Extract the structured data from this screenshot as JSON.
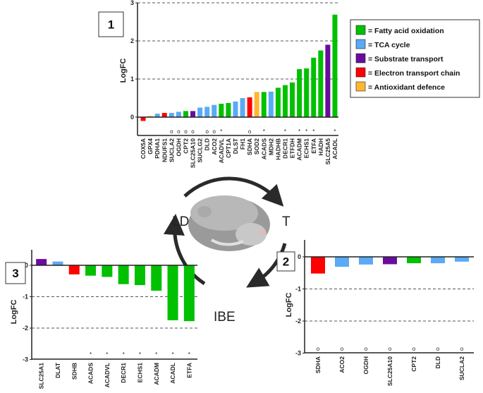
{
  "colors": {
    "fao": "#00c000",
    "tca": "#5aaaf5",
    "transport": "#6a0d9e",
    "etc": "#ff0000",
    "antiox": "#ffb732"
  },
  "legend": [
    {
      "key": "fao",
      "label": "= Fatty acid oxidation"
    },
    {
      "key": "tca",
      "label": "= TCA cycle"
    },
    {
      "key": "transport",
      "label": "= Substrate transport"
    },
    {
      "key": "etc",
      "label": "= Electron transport chain"
    },
    {
      "key": "antiox",
      "label": "= Antioxidant defence"
    }
  ],
  "cycle": {
    "ld": "LD",
    "t": "T",
    "ibe": "IBE"
  },
  "chart_data": [
    {
      "panel": "1",
      "type": "bar",
      "ylabel": "LogFC",
      "ylim": [
        -0.3,
        3
      ],
      "yticks": [
        "0",
        "1",
        "2",
        "3"
      ],
      "ytick_values": [
        0,
        1,
        2,
        3
      ],
      "grid": "dashed at 1,2,3",
      "categories": [
        "COX5A",
        "GPX4",
        "PDHA1",
        "NDUFS1",
        "SUCLA2",
        "OGDH",
        "CPT2",
        "SLC25A10",
        "SUCLG2",
        "DLD",
        "ACO2",
        "ACADVL",
        "CPT1A",
        "DLST",
        "FH1",
        "SDHA",
        "SOD2",
        "ACADS",
        "MDH2",
        "HADHB",
        "DECR1",
        "ETFDH",
        "ACADM",
        "ECHS1",
        "ETFA",
        "HADH",
        "SLC25A5",
        "ACADL"
      ],
      "values": [
        -0.1,
        0.03,
        0.09,
        0.11,
        0.11,
        0.14,
        0.16,
        0.16,
        0.25,
        0.27,
        0.32,
        0.35,
        0.37,
        0.41,
        0.5,
        0.52,
        0.66,
        0.66,
        0.67,
        0.77,
        0.84,
        0.91,
        1.26,
        1.28,
        1.56,
        1.75,
        1.9,
        2.69
      ],
      "groups": [
        "etc",
        "antiox",
        "tca",
        "etc",
        "tca",
        "tca",
        "fao",
        "transport",
        "tca",
        "tca",
        "tca",
        "fao",
        "fao",
        "tca",
        "tca",
        "etc",
        "antiox",
        "fao",
        "tca",
        "fao",
        "fao",
        "fao",
        "fao",
        "fao",
        "fao",
        "fao",
        "transport",
        "fao"
      ],
      "markers": [
        "",
        "",
        "",
        "",
        "o",
        "o",
        "o",
        "o",
        "",
        "o",
        "o",
        "*",
        "",
        "",
        "",
        "o",
        "",
        "*",
        "",
        "",
        "*",
        "",
        "*",
        "*",
        "*",
        "",
        "",
        "*"
      ]
    },
    {
      "panel": "2",
      "type": "bar",
      "ylabel": "LogFC",
      "ylim": [
        -3,
        0.3
      ],
      "yticks": [
        "0",
        "-1",
        "-2",
        "-3"
      ],
      "ytick_values": [
        0,
        -1,
        -2,
        -3
      ],
      "grid": "dashed at -1,-2",
      "categories": [
        "SDHA",
        "ACO2",
        "OGDH",
        "SLC25A10",
        "CPT2",
        "DLD",
        "SUCLA2"
      ],
      "values": [
        -0.52,
        -0.31,
        -0.24,
        -0.23,
        -0.2,
        -0.2,
        -0.15
      ],
      "groups": [
        "etc",
        "tca",
        "tca",
        "transport",
        "fao",
        "tca",
        "tca"
      ],
      "markers": [
        "o",
        "o",
        "o",
        "o",
        "o",
        "o",
        "o"
      ]
    },
    {
      "panel": "3",
      "type": "bar",
      "ylabel": "LogFC",
      "ylim": [
        -3,
        0.5
      ],
      "yticks": [
        "0",
        "-1",
        "-2",
        "-3"
      ],
      "ytick_values": [
        0,
        -1,
        -2,
        -3
      ],
      "grid": "dashed at -1,-2",
      "categories": [
        "SLC25A1",
        "DLAT",
        "SDHB",
        "ACADS",
        "ACADVL",
        "DECR1",
        "ECHS1",
        "ACADM",
        "ACADL",
        "ETFA"
      ],
      "values": [
        0.2,
        0.12,
        -0.29,
        -0.33,
        -0.37,
        -0.6,
        -0.63,
        -0.81,
        -1.75,
        -1.78
      ],
      "groups": [
        "transport",
        "tca",
        "etc",
        "fao",
        "fao",
        "fao",
        "fao",
        "fao",
        "fao",
        "fao"
      ],
      "markers": [
        "",
        "",
        "",
        "*",
        "*",
        "*",
        "*",
        "*",
        "*",
        "*"
      ]
    }
  ]
}
